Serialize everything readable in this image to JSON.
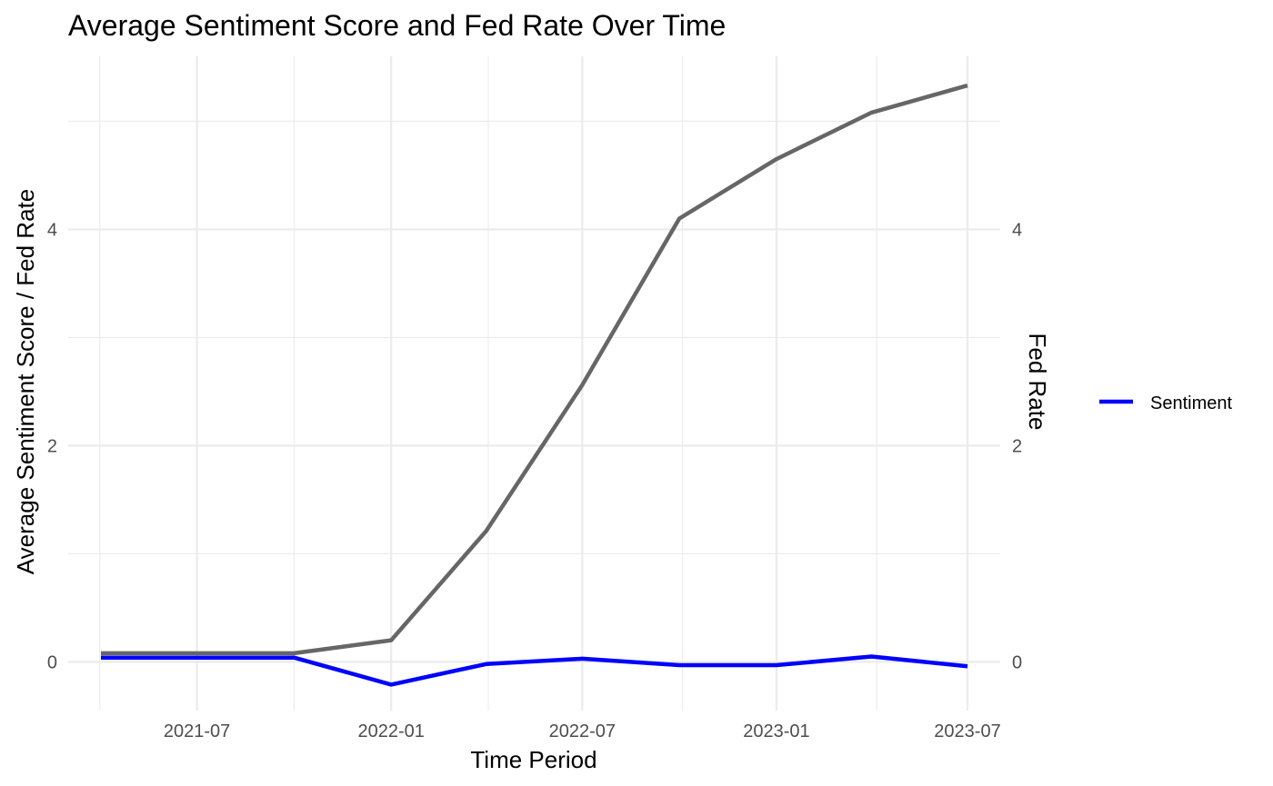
{
  "chart_data": {
    "type": "line",
    "title": "Average Sentiment Score and Fed Rate Over Time",
    "xlabel": "Time Period",
    "ylabel": "Average Sentiment Score / Fed Rate",
    "y2label": "Fed Rate",
    "x": [
      "2021-04-01",
      "2021-07-01",
      "2021-10-01",
      "2022-01-01",
      "2022-04-01",
      "2022-07-01",
      "2022-10-01",
      "2023-01-01",
      "2023-04-01",
      "2023-07-01"
    ],
    "xlim": [
      "2021-03-01",
      "2023-08-01"
    ],
    "ylim": [
      -0.45,
      5.6
    ],
    "x_ticks": [
      "2021-07-01",
      "2022-01-01",
      "2022-07-01",
      "2023-01-01",
      "2023-07-01"
    ],
    "x_tick_labels": [
      "2021-07",
      "2022-01",
      "2022-07",
      "2023-01",
      "2023-07"
    ],
    "y_ticks": [
      0,
      2,
      4
    ],
    "y_tick_labels": [
      "0",
      "2",
      "4"
    ],
    "grid": true,
    "legend_position": "right",
    "series": [
      {
        "name": "Sentiment",
        "color": "#0000ff",
        "legend": true,
        "values": [
          0.04,
          0.04,
          0.04,
          -0.21,
          -0.02,
          0.03,
          -0.03,
          -0.03,
          0.05,
          -0.04
        ]
      },
      {
        "color": "#666666",
        "legend": false,
        "values": [
          0.08,
          0.08,
          0.08,
          0.2,
          1.21,
          2.56,
          4.1,
          4.65,
          5.08,
          5.33
        ]
      }
    ]
  }
}
